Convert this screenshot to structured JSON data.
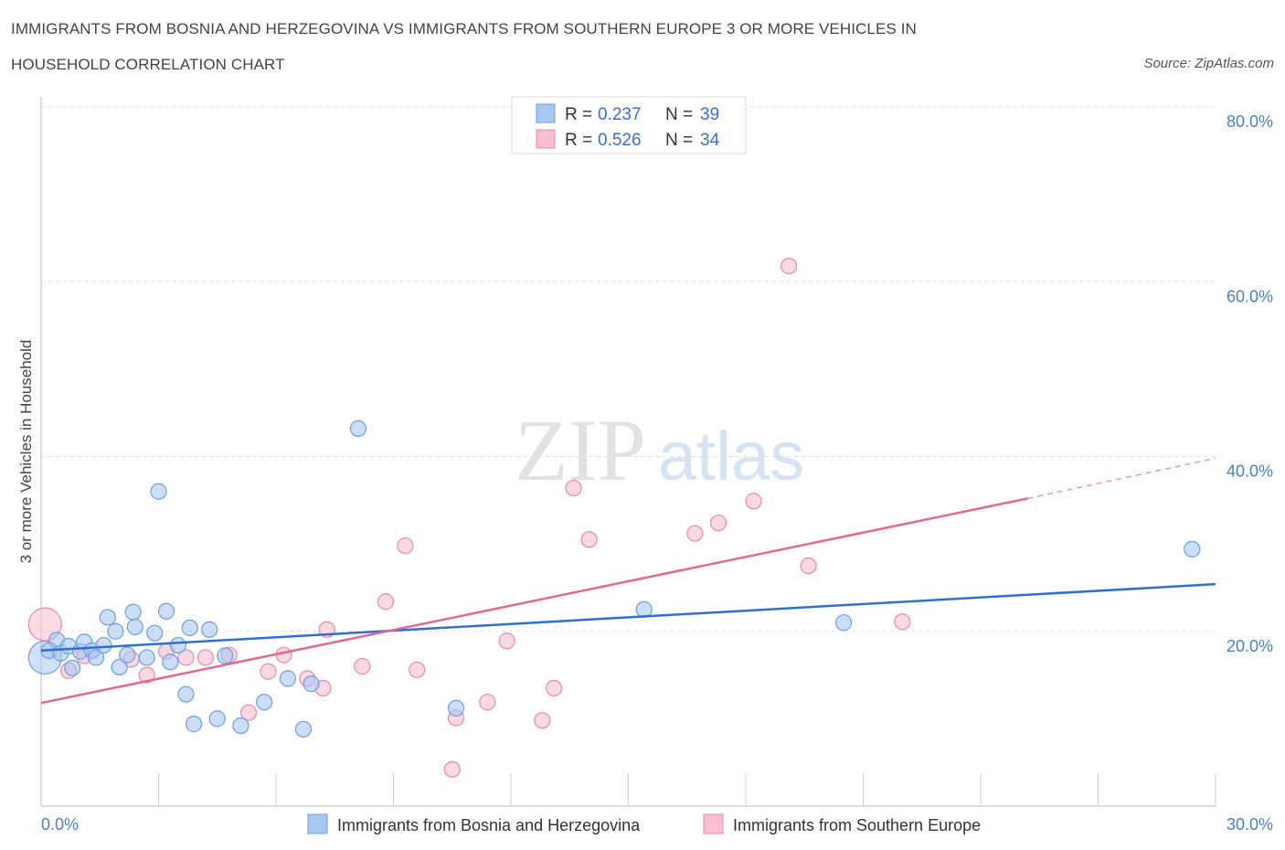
{
  "header": {
    "title_line1": "IMMIGRANTS FROM BOSNIA AND HERZEGOVINA VS IMMIGRANTS FROM SOUTHERN EUROPE 3 OR MORE VEHICLES IN",
    "title_line2": "HOUSEHOLD CORRELATION CHART",
    "source": "Source: ZipAtlas.com"
  },
  "watermark": {
    "zip": "ZIP",
    "atlas": "atlas"
  },
  "colors": {
    "blue_fill": "#a9c8f0",
    "blue_stroke": "#6d9fe0",
    "blue_line": "#2f6fd0",
    "pink_fill": "#f7bfd0",
    "pink_stroke": "#e88aa8",
    "pink_line": "#e06a94",
    "grid": "#dddddd",
    "tick_text": "#4a7fc8"
  },
  "legend": {
    "rows": [
      {
        "r_label": "R = ",
        "r_value": "0.237",
        "n_label": "N = ",
        "n_value": "39"
      },
      {
        "r_label": "R = ",
        "r_value": "0.526",
        "n_label": "N = ",
        "n_value": "34"
      }
    ]
  },
  "chart_data": {
    "type": "scatter",
    "title": "Immigrants from Bosnia and Herzegovina vs Immigrants from Southern Europe 3 or more Vehicles in Household Correlation Chart",
    "xlabel": "",
    "ylabel": "3 or more Vehicles in Household",
    "xlim": [
      0,
      30
    ],
    "ylim": [
      0,
      80
    ],
    "x_tick_labels": [
      "0.0%",
      "30.0%"
    ],
    "y_ticks": [
      20,
      40,
      60,
      80
    ],
    "y_tick_labels": [
      "20.0%",
      "40.0%",
      "60.0%",
      "80.0%"
    ],
    "grid": true,
    "series": [
      {
        "name": "Immigrants from Bosnia and Herzegovina",
        "color": "blue",
        "r": 0.237,
        "n": 39,
        "trend": {
          "x0": 0,
          "y0": 17.8,
          "x1": 30,
          "y1": 25.4
        },
        "points": [
          {
            "x": 0.1,
            "y": 17.0,
            "big": true
          },
          {
            "x": 0.2,
            "y": 17.8
          },
          {
            "x": 0.4,
            "y": 19.0
          },
          {
            "x": 0.5,
            "y": 17.5
          },
          {
            "x": 0.7,
            "y": 18.3
          },
          {
            "x": 0.8,
            "y": 15.8
          },
          {
            "x": 1.0,
            "y": 17.7
          },
          {
            "x": 1.1,
            "y": 18.8
          },
          {
            "x": 1.3,
            "y": 17.8
          },
          {
            "x": 1.4,
            "y": 17.0
          },
          {
            "x": 1.6,
            "y": 18.4
          },
          {
            "x": 1.7,
            "y": 21.6
          },
          {
            "x": 1.9,
            "y": 20.0
          },
          {
            "x": 2.0,
            "y": 15.9
          },
          {
            "x": 2.2,
            "y": 17.3
          },
          {
            "x": 2.35,
            "y": 22.2
          },
          {
            "x": 2.4,
            "y": 20.5
          },
          {
            "x": 2.7,
            "y": 17.0
          },
          {
            "x": 2.9,
            "y": 19.8
          },
          {
            "x": 3.0,
            "y": 36.0
          },
          {
            "x": 3.2,
            "y": 22.3
          },
          {
            "x": 3.3,
            "y": 16.5
          },
          {
            "x": 3.5,
            "y": 18.4
          },
          {
            "x": 3.7,
            "y": 12.8
          },
          {
            "x": 3.8,
            "y": 20.4
          },
          {
            "x": 3.9,
            "y": 9.4
          },
          {
            "x": 4.3,
            "y": 20.2
          },
          {
            "x": 4.5,
            "y": 10.0
          },
          {
            "x": 4.7,
            "y": 17.2
          },
          {
            "x": 5.1,
            "y": 9.2
          },
          {
            "x": 5.7,
            "y": 11.9
          },
          {
            "x": 6.3,
            "y": 14.6
          },
          {
            "x": 6.7,
            "y": 8.8
          },
          {
            "x": 6.9,
            "y": 14.0
          },
          {
            "x": 8.1,
            "y": 43.2
          },
          {
            "x": 10.6,
            "y": 11.2
          },
          {
            "x": 15.4,
            "y": 22.5
          },
          {
            "x": 20.5,
            "y": 21.0
          },
          {
            "x": 29.4,
            "y": 29.4
          }
        ]
      },
      {
        "name": "Immigrants from Southern Europe",
        "color": "pink",
        "r": 0.526,
        "n": 34,
        "trend": {
          "x0": 0,
          "y0": 11.8,
          "x1": 25.2,
          "y1": 35.2,
          "dash_x1": 30,
          "dash_y1": 39.8
        },
        "points": [
          {
            "x": 0.1,
            "y": 20.8,
            "big": true
          },
          {
            "x": 0.7,
            "y": 15.5
          },
          {
            "x": 1.1,
            "y": 17.2
          },
          {
            "x": 1.3,
            "y": 17.8
          },
          {
            "x": 2.3,
            "y": 16.8
          },
          {
            "x": 2.7,
            "y": 15.0
          },
          {
            "x": 3.2,
            "y": 17.7
          },
          {
            "x": 3.7,
            "y": 17.0
          },
          {
            "x": 4.2,
            "y": 17.0
          },
          {
            "x": 4.8,
            "y": 17.3
          },
          {
            "x": 5.3,
            "y": 10.7
          },
          {
            "x": 5.8,
            "y": 15.4
          },
          {
            "x": 6.2,
            "y": 17.3
          },
          {
            "x": 6.8,
            "y": 14.6
          },
          {
            "x": 7.2,
            "y": 13.5
          },
          {
            "x": 7.3,
            "y": 20.2
          },
          {
            "x": 8.2,
            "y": 16.0
          },
          {
            "x": 8.8,
            "y": 23.4
          },
          {
            "x": 9.3,
            "y": 29.8
          },
          {
            "x": 9.6,
            "y": 15.6
          },
          {
            "x": 10.6,
            "y": 10.1
          },
          {
            "x": 10.5,
            "y": 4.2
          },
          {
            "x": 11.4,
            "y": 11.9
          },
          {
            "x": 11.9,
            "y": 18.9
          },
          {
            "x": 12.8,
            "y": 9.8
          },
          {
            "x": 13.1,
            "y": 13.5
          },
          {
            "x": 13.6,
            "y": 36.4
          },
          {
            "x": 14.0,
            "y": 30.5
          },
          {
            "x": 16.7,
            "y": 31.2
          },
          {
            "x": 17.3,
            "y": 32.4
          },
          {
            "x": 18.2,
            "y": 34.9
          },
          {
            "x": 19.1,
            "y": 61.8
          },
          {
            "x": 19.6,
            "y": 27.5
          },
          {
            "x": 22.0,
            "y": 21.1
          }
        ]
      }
    ]
  }
}
